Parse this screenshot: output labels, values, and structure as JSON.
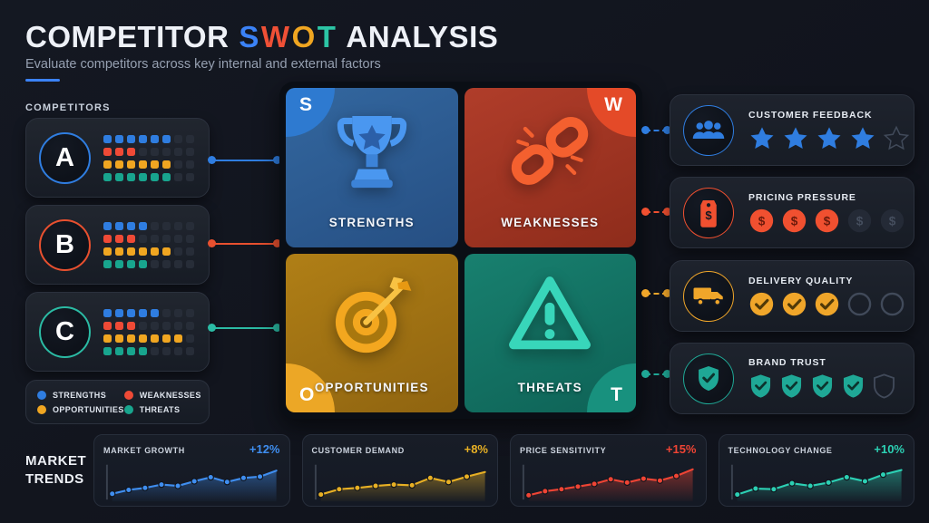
{
  "header": {
    "title_prefix": "COMPETITOR",
    "swot_letters": [
      {
        "ch": "S",
        "color": "#3b82f6"
      },
      {
        "ch": "W",
        "color": "#ef5036"
      },
      {
        "ch": "O",
        "color": "#f0a621"
      },
      {
        "ch": "T",
        "color": "#2cc5a5"
      }
    ],
    "title_suffix": "ANALYSIS",
    "subtitle": "Evaluate competitors across key internal and external factors"
  },
  "competitors": {
    "heading": "COMPETITORS",
    "dots_total": 8,
    "items": [
      {
        "label": "A",
        "ring": "#2f7de0",
        "scores": {
          "strengths": 6,
          "weaknesses": 3,
          "opportunities": 6,
          "threats": 6
        }
      },
      {
        "label": "B",
        "ring": "#e8502f",
        "scores": {
          "strengths": 4,
          "weaknesses": 3,
          "opportunities": 6,
          "threats": 4
        }
      },
      {
        "label": "C",
        "ring": "#2bbba4",
        "scores": {
          "strengths": 5,
          "weaknesses": 3,
          "opportunities": 7,
          "threats": 4
        }
      }
    ],
    "legend": [
      {
        "label": "STRENGTHS",
        "color": "#2f7de0"
      },
      {
        "label": "WEAKNESSES",
        "color": "#ef4a36"
      },
      {
        "label": "OPPORTUNITIES",
        "color": "#f0a621"
      },
      {
        "label": "THREATS",
        "color": "#18a58e"
      }
    ]
  },
  "swot": {
    "quadrants": [
      {
        "key": "S",
        "label": "STRENGTHS",
        "icon": "trophy-icon",
        "bg_from": "#33679f",
        "bg_to": "#264f83",
        "badge": "#2e7ad0",
        "badge_pos": "top-left"
      },
      {
        "key": "W",
        "label": "WEAKNESSES",
        "icon": "broken-chain-icon",
        "bg_from": "#b03d2a",
        "bg_to": "#8e2c1b",
        "badge": "#e44a28",
        "badge_pos": "top-right"
      },
      {
        "key": "O",
        "label": "OPPORTUNITIES",
        "icon": "target-icon",
        "bg_from": "#b07f16",
        "bg_to": "#8f6410",
        "badge": "#eca726",
        "badge_pos": "bottom-left"
      },
      {
        "key": "T",
        "label": "THREATS",
        "icon": "warning-triangle-icon",
        "bg_from": "#18806f",
        "bg_to": "#0e6256",
        "badge": "#18917e",
        "badge_pos": "bottom-right"
      }
    ]
  },
  "metrics": [
    {
      "label": "CUSTOMER FEEDBACK",
      "icon": "people-icon",
      "accent": "#2f7de0",
      "unit": "star",
      "filled": 4,
      "total": 5
    },
    {
      "label": "PRICING PRESSURE",
      "icon": "price-tag-icon",
      "accent": "#f05030",
      "unit": "coin",
      "filled": 3,
      "total": 5
    },
    {
      "label": "DELIVERY QUALITY",
      "icon": "truck-icon",
      "accent": "#f0a62a",
      "unit": "check",
      "filled": 3,
      "total": 5
    },
    {
      "label": "BRAND TRUST",
      "icon": "shield-icon",
      "accent": "#1fa896",
      "unit": "shield",
      "filled": 4,
      "total": 5
    }
  ],
  "trends": {
    "heading": "MARKET TRENDS"
  },
  "chart_data": [
    {
      "type": "line",
      "title": "MARKET GROWTH",
      "change": "+12%",
      "color": "#3f8ef0",
      "values": [
        12,
        24,
        30,
        40,
        36,
        50,
        62,
        48,
        60,
        64,
        82
      ],
      "xlabel": "",
      "ylabel": "",
      "ylim": [
        0,
        100
      ],
      "grid": false,
      "legend_position": "none"
    },
    {
      "type": "line",
      "title": "CUSTOMER DEMAND",
      "change": "+8%",
      "color": "#e8b024",
      "values": [
        10,
        26,
        30,
        36,
        40,
        38,
        60,
        48,
        64,
        78
      ],
      "xlabel": "",
      "ylabel": "",
      "ylim": [
        0,
        100
      ],
      "grid": false,
      "legend_position": "none"
    },
    {
      "type": "line",
      "title": "PRICE SENSITIVITY",
      "change": "+15%",
      "color": "#ef4434",
      "values": [
        8,
        20,
        26,
        34,
        42,
        56,
        46,
        58,
        52,
        66,
        86
      ],
      "xlabel": "",
      "ylabel": "",
      "ylim": [
        0,
        100
      ],
      "grid": false,
      "legend_position": "none"
    },
    {
      "type": "line",
      "title": "TECHNOLOGY CHANGE",
      "change": "+10%",
      "color": "#2cd0b4",
      "values": [
        10,
        28,
        26,
        44,
        36,
        46,
        62,
        50,
        70,
        84
      ],
      "xlabel": "",
      "ylabel": "",
      "ylim": [
        0,
        100
      ],
      "grid": false,
      "legend_position": "none"
    }
  ],
  "colors": {
    "background": "#12151e",
    "card": "#1a1f2a",
    "panel": "#0a0e15"
  }
}
